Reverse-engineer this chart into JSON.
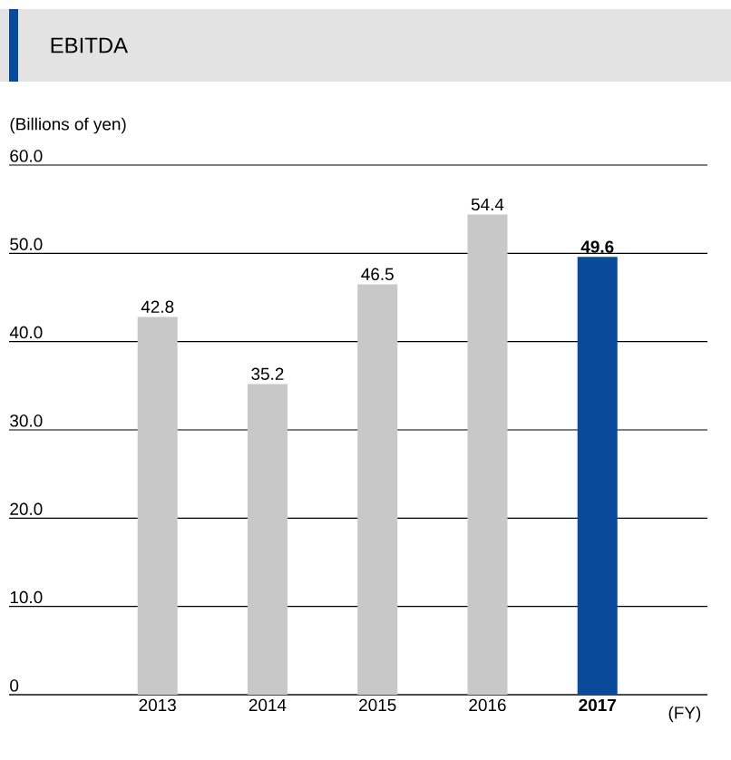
{
  "chart_data": {
    "type": "bar",
    "title": "EBITDA",
    "ylabel": "(Billions of yen)",
    "xlabel": "(FY)",
    "categories": [
      "2013",
      "2014",
      "2015",
      "2016",
      "**2017**"
    ],
    "values": [
      42.8,
      35.2,
      46.5,
      54.4,
      49.6
    ],
    "colors": [
      "#c8c8c8",
      "#c8c8c8",
      "#c8c8c8",
      "#c8c8c8",
      "#0a4a9a"
    ],
    "value_labels": [
      "42.8",
      "35.2",
      "46.5",
      "54.4",
      "**49.6**"
    ],
    "ylim": [
      0,
      60
    ],
    "yticks": [
      0,
      {
        "value": 10,
        "label": "10.0"
      },
      {
        "value": 20,
        "label": "20.0"
      },
      {
        "value": 30,
        "label": "30.0"
      },
      {
        "value": 40,
        "label": "40.0"
      },
      {
        "value": 50,
        "label": "50.0"
      },
      {
        "value": 60,
        "label": "60.0"
      }
    ],
    "grid": "y"
  }
}
